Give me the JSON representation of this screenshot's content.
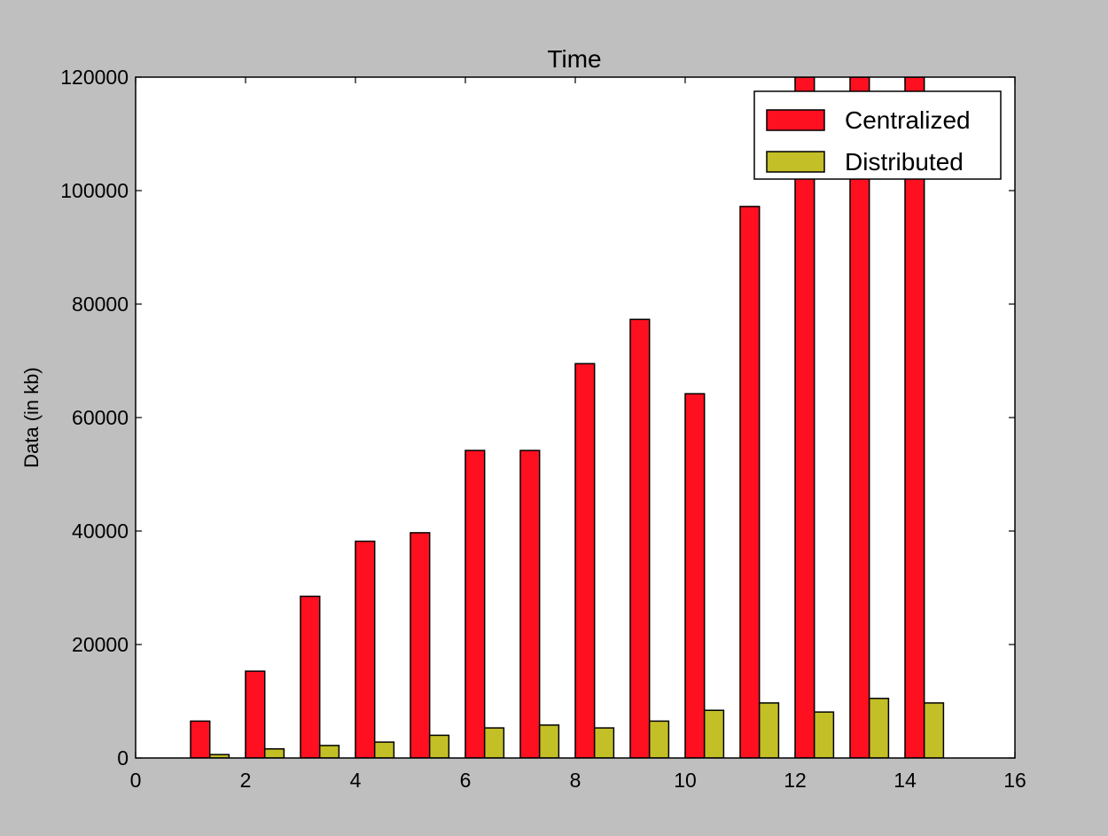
{
  "chart_data": {
    "type": "bar",
    "title": "Time",
    "xlabel": "",
    "ylabel": "Data (in kb)",
    "xlim": [
      0,
      16
    ],
    "ylim": [
      0,
      120000
    ],
    "xticks": [
      0,
      2,
      4,
      6,
      8,
      10,
      12,
      14,
      16
    ],
    "yticks": [
      0,
      20000,
      40000,
      60000,
      80000,
      100000,
      120000
    ],
    "grid": false,
    "legend": "top-right",
    "bar_width": 0.35,
    "x": [
      1,
      2,
      3,
      4,
      5,
      6,
      7,
      8,
      9,
      10,
      11,
      12,
      13,
      14
    ],
    "series": [
      {
        "name": "Centralized",
        "color": "#ff1020",
        "values": [
          6500,
          15300,
          28500,
          38200,
          39700,
          54200,
          54200,
          69500,
          77300,
          64200,
          97200,
          120000,
          120000,
          120000
        ]
      },
      {
        "name": "Distributed",
        "color": "#c3bf27",
        "values": [
          600,
          1600,
          2200,
          2800,
          4000,
          5300,
          5800,
          5300,
          6500,
          8400,
          9700,
          8100,
          10500,
          9700
        ]
      }
    ]
  }
}
